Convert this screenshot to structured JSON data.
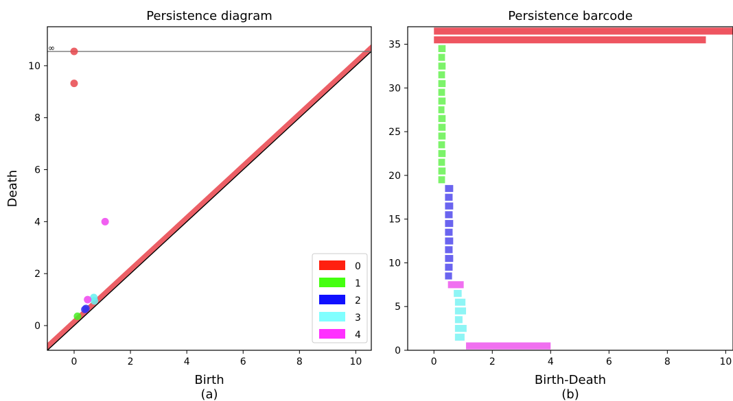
{
  "chart_data": [
    {
      "type": "scatter",
      "title": "Persistence diagram",
      "xlabel": "Birth",
      "ylabel": "Death",
      "caption": "(a)",
      "xlim": [
        -0.95,
        10.55
      ],
      "ylim": [
        -0.95,
        11.5
      ],
      "xticks": [
        0,
        2,
        4,
        6,
        8,
        10
      ],
      "yticks": [
        0,
        2,
        4,
        6,
        8,
        10
      ],
      "infinity_label": "∞",
      "infinity_y": 10.55,
      "legend_position": "lower-right",
      "legend": [
        {
          "label": "0",
          "color": "#ff2010"
        },
        {
          "label": "1",
          "color": "#44ff10"
        },
        {
          "label": "2",
          "color": "#1010ff"
        },
        {
          "label": "3",
          "color": "#80ffff"
        },
        {
          "label": "4",
          "color": "#ff30ff"
        }
      ],
      "series": [
        {
          "name": "0",
          "color": "#e8474c",
          "points": [
            [
              0.0,
              10.55
            ],
            [
              0.0,
              9.32
            ]
          ]
        },
        {
          "name": "1",
          "color": "#44ee22",
          "points": [
            [
              0.12,
              0.36
            ]
          ]
        },
        {
          "name": "2",
          "color": "#3434ee",
          "points": [
            [
              0.38,
              0.62
            ],
            [
              0.42,
              0.66
            ]
          ]
        },
        {
          "name": "3",
          "color": "#66f0f0",
          "points": [
            [
              0.7,
              1.08
            ],
            [
              0.72,
              0.95
            ]
          ]
        },
        {
          "name": "4",
          "color": "#ee44ee",
          "points": [
            [
              1.1,
              4.0
            ],
            [
              0.48,
              1.0
            ]
          ]
        }
      ]
    },
    {
      "type": "bar",
      "title": "Persistence barcode",
      "xlabel": "Birth-Death",
      "caption": "(b)",
      "xlim": [
        -0.9,
        10.25
      ],
      "ylim": [
        0,
        37
      ],
      "xticks": [
        0,
        2,
        4,
        6,
        8,
        10
      ],
      "yticks": [
        0,
        5,
        10,
        15,
        20,
        25,
        30,
        35
      ],
      "bars": [
        {
          "y": 36,
          "start": 0.0,
          "end": 10.55,
          "dim": 0
        },
        {
          "y": 35,
          "start": 0.0,
          "end": 9.32,
          "dim": 0
        },
        {
          "y": 34,
          "start": 0.15,
          "end": 0.4,
          "dim": 1
        },
        {
          "y": 33,
          "start": 0.15,
          "end": 0.38,
          "dim": 1
        },
        {
          "y": 32,
          "start": 0.15,
          "end": 0.4,
          "dim": 1
        },
        {
          "y": 31,
          "start": 0.15,
          "end": 0.38,
          "dim": 1
        },
        {
          "y": 30,
          "start": 0.15,
          "end": 0.4,
          "dim": 1
        },
        {
          "y": 29,
          "start": 0.15,
          "end": 0.38,
          "dim": 1
        },
        {
          "y": 28,
          "start": 0.15,
          "end": 0.4,
          "dim": 1
        },
        {
          "y": 27,
          "start": 0.15,
          "end": 0.36,
          "dim": 1
        },
        {
          "y": 26,
          "start": 0.15,
          "end": 0.4,
          "dim": 1
        },
        {
          "y": 25,
          "start": 0.15,
          "end": 0.4,
          "dim": 1
        },
        {
          "y": 24,
          "start": 0.15,
          "end": 0.4,
          "dim": 1
        },
        {
          "y": 23,
          "start": 0.15,
          "end": 0.38,
          "dim": 1
        },
        {
          "y": 22,
          "start": 0.15,
          "end": 0.4,
          "dim": 1
        },
        {
          "y": 21,
          "start": 0.15,
          "end": 0.38,
          "dim": 1
        },
        {
          "y": 20,
          "start": 0.15,
          "end": 0.4,
          "dim": 1
        },
        {
          "y": 19,
          "start": 0.15,
          "end": 0.38,
          "dim": 1
        },
        {
          "y": 18,
          "start": 0.38,
          "end": 0.66,
          "dim": 2
        },
        {
          "y": 17,
          "start": 0.38,
          "end": 0.64,
          "dim": 2
        },
        {
          "y": 16,
          "start": 0.38,
          "end": 0.66,
          "dim": 2
        },
        {
          "y": 15,
          "start": 0.38,
          "end": 0.64,
          "dim": 2
        },
        {
          "y": 14,
          "start": 0.38,
          "end": 0.66,
          "dim": 2
        },
        {
          "y": 13,
          "start": 0.38,
          "end": 0.64,
          "dim": 2
        },
        {
          "y": 12,
          "start": 0.38,
          "end": 0.66,
          "dim": 2
        },
        {
          "y": 11,
          "start": 0.38,
          "end": 0.64,
          "dim": 2
        },
        {
          "y": 10,
          "start": 0.38,
          "end": 0.66,
          "dim": 2
        },
        {
          "y": 9,
          "start": 0.38,
          "end": 0.64,
          "dim": 2
        },
        {
          "y": 8,
          "start": 0.38,
          "end": 0.62,
          "dim": 2
        },
        {
          "y": 7,
          "start": 0.48,
          "end": 1.02,
          "dim": 4
        },
        {
          "y": 6,
          "start": 0.68,
          "end": 0.95,
          "dim": 3
        },
        {
          "y": 5,
          "start": 0.72,
          "end": 1.08,
          "dim": 3
        },
        {
          "y": 4,
          "start": 0.72,
          "end": 1.1,
          "dim": 3
        },
        {
          "y": 3,
          "start": 0.72,
          "end": 0.98,
          "dim": 3
        },
        {
          "y": 2,
          "start": 0.72,
          "end": 1.12,
          "dim": 3
        },
        {
          "y": 1,
          "start": 0.72,
          "end": 1.05,
          "dim": 3
        },
        {
          "y": 0,
          "start": 1.1,
          "end": 4.0,
          "dim": 4
        }
      ],
      "dim_colors": [
        "#ee5560",
        "#7cf36a",
        "#6a64ef",
        "#8ef5f5",
        "#f070f0"
      ]
    }
  ]
}
